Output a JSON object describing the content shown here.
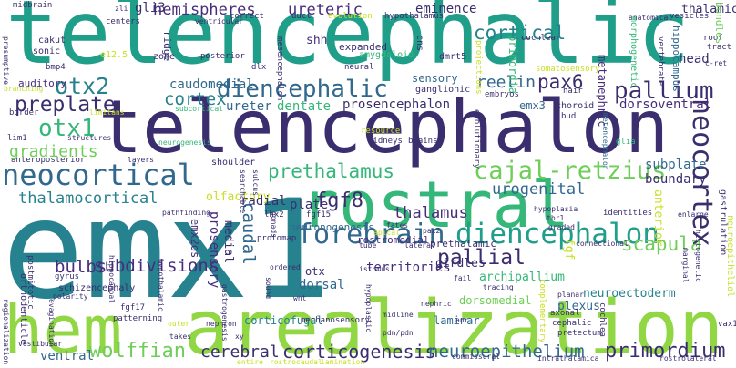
{
  "palette": {
    "background": "#ffffff",
    "navy": "#3b2e6f",
    "purple": "#472d7b",
    "indigo": "#414487",
    "blue": "#31688e",
    "teal": "#26828e",
    "green": "#1f9e89",
    "emerald": "#35b779",
    "lime": "#6ece58",
    "lightlime": "#90d743",
    "yellow": "#c8e020"
  },
  "words": [
    "telencephalic",
    "telencephalon",
    "emx1",
    "hem",
    "arealization",
    "rostral",
    "neocortical",
    "forebrain",
    "diencephalon",
    "neocortex",
    "cajal-retzius",
    "prethalamus",
    "diencephalic",
    "hemispheres",
    "ureteric",
    "otx2",
    "otx1",
    "pallium",
    "pallial",
    "gradients",
    "preplate",
    "cortical",
    "pax6",
    "reelin",
    "fgf8",
    "thalamocortical",
    "caudal",
    "scapula",
    "subdivisions",
    "bulbs",
    "wolffian",
    "cerebral",
    "corticogenesis",
    "neuroepithelium",
    "primordium",
    "urogenital",
    "thalamus",
    "caudomedial",
    "cortex",
    "gli3",
    "eminence",
    "ventral",
    "dorsoventral",
    "prosencephalon",
    "dentate",
    "ureter",
    "shh",
    "olfactory",
    "subplate",
    "boundary",
    "anterior",
    "thalamic",
    "territories",
    "plate",
    "radial",
    "dorsal",
    "otx",
    "girdles",
    "archipallium",
    "dorsomedial",
    "neuroectoderm",
    "plexus",
    "laminar",
    "prosensory",
    "emx2os",
    "fgf",
    "medial",
    "rostromedial",
    "neuronogenesis",
    "prethalamic",
    "emx3",
    "corticofugal",
    "mechanosensory",
    "schizencephaly",
    "orthodenticle",
    "metanephric",
    "e12.5",
    "sonic",
    "bmp4",
    "cakut",
    "auditory",
    "lim1",
    "expanded",
    "dlx",
    "amygdaloid",
    "dmrt5",
    "cns",
    "sensory",
    "primordia",
    "cochlear",
    "roof",
    "tract",
    "head",
    "bundles",
    "vesicles",
    "midbrain",
    "centers",
    "correct",
    "duct",
    "evolution",
    "hypothalamus",
    "anatomical",
    "zone",
    "posterior",
    "mesencephalon",
    "neural",
    "ganglionic",
    "embryos",
    "hair",
    "projections",
    "somatosensory",
    "hippocampus",
    "vertebrate",
    "morphogenetic",
    "gastrulation",
    "neuroepithelial",
    "subcortical",
    "structures",
    "layers",
    "neurogenesis",
    "resource",
    "kidneys",
    "brains",
    "evolutionary",
    "choroid",
    "bud",
    "glia",
    "metencephalon",
    "c-ret",
    "limitans",
    "border",
    "anteroposterior",
    "branching",
    "presumptive",
    "zli",
    "ventricular",
    "ridge",
    "shoulder",
    "searchable",
    "pathfinding",
    "sulcus",
    "gonads",
    "lhx2",
    "protomap",
    "fgf15",
    "tube",
    "fates",
    "apical",
    "pax2",
    "hypoplasia",
    "identities",
    "connectional",
    "tbr1",
    "graded",
    "enlarge",
    "marginal",
    "histogenetic",
    "lateral",
    "postmitotic",
    "gyrus",
    "polarity",
    "ordered",
    "wnt",
    "sound",
    "isthmus",
    "fail",
    "anr",
    "tracing",
    "nephric",
    "planar",
    "axonal",
    "cephalic",
    "pretectum",
    "cochlea",
    "midline",
    "complementary",
    "hypoplastic",
    "fgf17",
    "patterning",
    "evagination",
    "regionalization",
    "vestibular",
    "nephron",
    "xy",
    "pdn/pdn",
    "takes",
    "outer",
    "gastrogenesis",
    "commissural",
    "intrathalamica",
    "rostrolateral",
    "entire",
    "rostrocaudal",
    "lamination",
    "hippocampal",
    "hypothalamic",
    "vax1"
  ]
}
